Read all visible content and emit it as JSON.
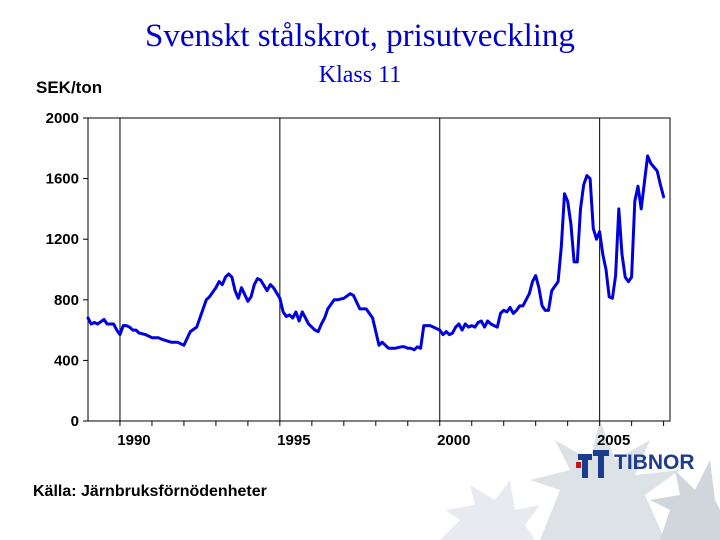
{
  "title": "Svenskt stålskrot, prisutveckling",
  "subtitle": "Klass 11",
  "source": "Källa: Järnbruksförnödenheter",
  "logo_text": "TIBNOR",
  "colors": {
    "title": "#0000cc",
    "line": "#0000dd",
    "logo": "#1c3c8c"
  },
  "chart_data": {
    "type": "line",
    "title": "Svenskt stålskrot, prisutveckling",
    "subtitle": "Klass 11",
    "ylabel": "SEK/ton",
    "xlabel": "",
    "ylim": [
      0,
      2000
    ],
    "xlim": [
      1989.0,
      2007.2
    ],
    "yticks": [
      0,
      400,
      800,
      1200,
      1600,
      2000
    ],
    "yticklabels": [
      "0",
      "400",
      "800",
      "1200",
      "1600",
      "2000"
    ],
    "xticks": [
      1990,
      1995,
      2000,
      2005
    ],
    "xticklabels": [
      "1990",
      "1995",
      "2000",
      "2005"
    ],
    "grid": {
      "vertical": true,
      "horizontal": false
    },
    "legend": "none",
    "series": [
      {
        "x": [
          1989.0,
          1989.1,
          1989.2,
          1989.3,
          1989.5,
          1989.6,
          1989.8,
          1989.9,
          1990.0,
          1990.1,
          1990.2,
          1990.3,
          1990.4,
          1990.5,
          1990.6,
          1990.8,
          1991.0,
          1991.2,
          1991.3,
          1991.6,
          1991.8,
          1992.0,
          1992.2,
          1992.4,
          1992.7,
          1992.8,
          1993.0,
          1993.1,
          1993.2,
          1993.3,
          1993.4,
          1993.5,
          1993.6,
          1993.7,
          1993.8,
          1994.0,
          1994.1,
          1994.2,
          1994.3,
          1994.4,
          1994.6,
          1994.7,
          1994.8,
          1995.0,
          1995.1,
          1995.2,
          1995.3,
          1995.4,
          1995.5,
          1995.6,
          1995.7,
          1995.8,
          1995.9,
          1996.0,
          1996.1,
          1996.2,
          1996.3,
          1996.4,
          1996.5,
          1996.7,
          1996.8,
          1997.0,
          1997.2,
          1997.3,
          1997.5,
          1997.7,
          1997.9,
          1998.1,
          1998.2,
          1998.3,
          1998.4,
          1998.5,
          1998.6,
          1998.8,
          1998.9,
          1999.0,
          1999.1,
          1999.2,
          1999.3,
          1999.4,
          1999.5,
          1999.7,
          1999.9,
          2000.0,
          2000.1,
          2000.2,
          2000.3,
          2000.4,
          2000.5,
          2000.6,
          2000.7,
          2000.8,
          2000.9,
          2001.0,
          2001.1,
          2001.2,
          2001.3,
          2001.4,
          2001.5,
          2001.6,
          2001.7,
          2001.8,
          2001.9,
          2002.0,
          2002.1,
          2002.2,
          2002.3,
          2002.4,
          2002.5,
          2002.6,
          2002.7,
          2002.8,
          2002.9,
          2003.0,
          2003.1,
          2003.2,
          2003.3,
          2003.4,
          2003.5,
          2003.6,
          2003.7,
          2003.8,
          2003.9,
          2004.0,
          2004.1,
          2004.2,
          2004.3,
          2004.4,
          2004.5,
          2004.6,
          2004.7,
          2004.8,
          2004.9,
          2005.0,
          2005.1,
          2005.2,
          2005.3,
          2005.4,
          2005.5,
          2005.6,
          2005.7,
          2005.8,
          2005.9,
          2006.0,
          2006.1,
          2006.2,
          2006.3,
          2006.5,
          2006.6,
          2006.8,
          2006.9,
          2007.0
        ],
        "y": [
          680,
          640,
          650,
          640,
          670,
          640,
          640,
          600,
          570,
          630,
          630,
          620,
          600,
          600,
          580,
          570,
          550,
          550,
          540,
          520,
          520,
          500,
          590,
          620,
          800,
          820,
          880,
          920,
          900,
          950,
          970,
          950,
          860,
          810,
          880,
          790,
          820,
          900,
          940,
          930,
          860,
          900,
          880,
          810,
          720,
          690,
          700,
          680,
          720,
          660,
          720,
          680,
          640,
          620,
          600,
          590,
          640,
          680,
          740,
          800,
          800,
          810,
          840,
          830,
          740,
          740,
          680,
          500,
          520,
          500,
          480,
          480,
          480,
          490,
          490,
          480,
          480,
          470,
          490,
          480,
          630,
          630,
          610,
          600,
          570,
          590,
          570,
          580,
          620,
          640,
          600,
          640,
          620,
          630,
          620,
          650,
          660,
          620,
          660,
          640,
          630,
          620,
          710,
          730,
          720,
          750,
          710,
          730,
          760,
          760,
          800,
          840,
          920,
          960,
          880,
          760,
          730,
          730,
          860,
          890,
          920,
          1150,
          1500,
          1450,
          1300,
          1050,
          1050,
          1400,
          1560,
          1620,
          1600,
          1270,
          1200,
          1250,
          1100,
          1000,
          820,
          810,
          960,
          1400,
          1100,
          950,
          920,
          950,
          1450,
          1550,
          1400,
          1750,
          1700,
          1650,
          1560,
          1480
        ]
      }
    ]
  }
}
